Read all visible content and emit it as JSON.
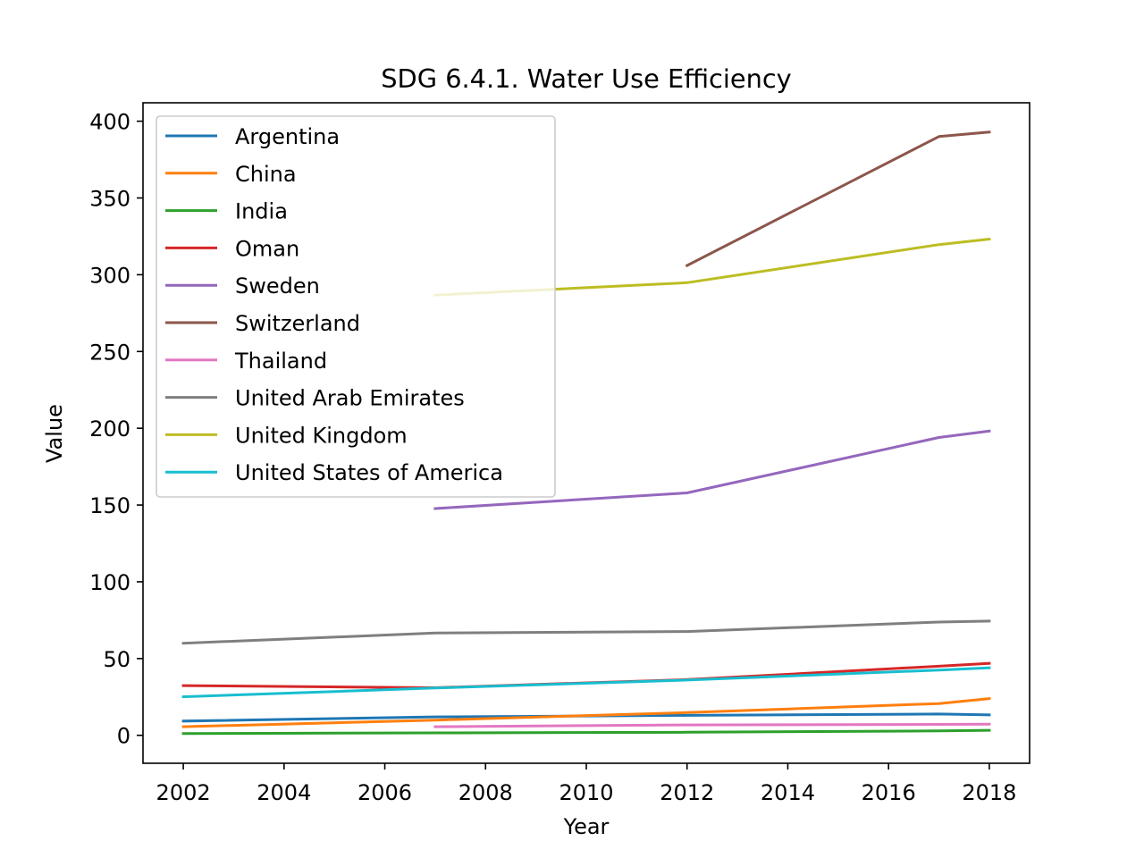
{
  "chart_data": {
    "type": "line",
    "title": "SDG 6.4.1. Water Use Efficiency",
    "xlabel": "Year",
    "ylabel": "Value",
    "xlim": [
      2001.2,
      2018.8
    ],
    "ylim": [
      -18.2,
      412.0
    ],
    "xticks": [
      2002,
      2004,
      2006,
      2008,
      2010,
      2012,
      2014,
      2016,
      2018
    ],
    "yticks": [
      0,
      50,
      100,
      150,
      200,
      250,
      300,
      350,
      400
    ],
    "grid": false,
    "legend_position": "upper left",
    "series": [
      {
        "name": "Argentina",
        "color": "#1f77b4",
        "x": [
          2002,
          2007,
          2012,
          2017,
          2018
        ],
        "y": [
          9.3,
          12.0,
          13.0,
          13.9,
          13.3
        ]
      },
      {
        "name": "China",
        "color": "#ff7f0e",
        "x": [
          2002,
          2007,
          2012,
          2017,
          2018
        ],
        "y": [
          5.6,
          9.9,
          14.8,
          20.7,
          23.9
        ]
      },
      {
        "name": "India",
        "color": "#2ca02c",
        "x": [
          2002,
          2007,
          2012,
          2017,
          2018
        ],
        "y": [
          1.2,
          1.6,
          2.0,
          2.9,
          3.3
        ]
      },
      {
        "name": "Oman",
        "color": "#d62728",
        "x": [
          2002,
          2007,
          2012,
          2017,
          2018
        ],
        "y": [
          32.4,
          31.0,
          36.3,
          45.0,
          46.9
        ]
      },
      {
        "name": "Sweden",
        "color": "#9467bd",
        "x": [
          2007,
          2012,
          2017,
          2018
        ],
        "y": [
          147.7,
          157.9,
          194.0,
          198.2
        ]
      },
      {
        "name": "Switzerland",
        "color": "#8c564b",
        "x": [
          2012,
          2017,
          2018
        ],
        "y": [
          306.0,
          390.0,
          392.9
        ]
      },
      {
        "name": "Thailand",
        "color": "#e377c2",
        "x": [
          2007,
          2012,
          2017,
          2018
        ],
        "y": [
          5.6,
          6.8,
          7.1,
          7.3
        ]
      },
      {
        "name": "United Arab Emirates",
        "color": "#7f7f7f",
        "x": [
          2002,
          2007,
          2012,
          2017,
          2018
        ],
        "y": [
          60.0,
          66.6,
          67.6,
          73.8,
          74.4
        ]
      },
      {
        "name": "United Kingdom",
        "color": "#bcbd22",
        "x": [
          2007,
          2012,
          2017,
          2018
        ],
        "y": [
          286.7,
          294.8,
          319.6,
          323.2
        ]
      },
      {
        "name": "United States of America",
        "color": "#17becf",
        "x": [
          2002,
          2007,
          2012,
          2017,
          2018
        ],
        "y": [
          25.1,
          30.8,
          36.0,
          42.5,
          44.0
        ]
      }
    ]
  }
}
